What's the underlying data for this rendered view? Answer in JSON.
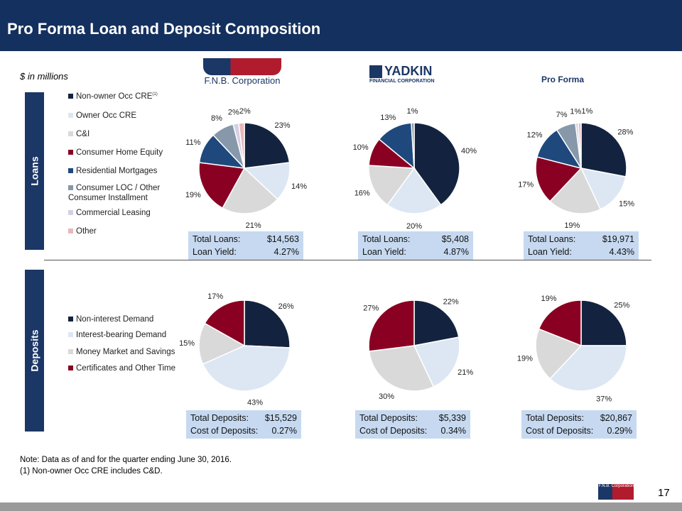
{
  "title": "Pro Forma Loan and Deposit Composition",
  "units": "$ in millions",
  "logos": {
    "fnb": "F.N.B. Corporation",
    "yadkin_main": "YADKIN",
    "yadkin_sub": "FINANCIAL CORPORATION",
    "pro_forma": "Pro Forma",
    "footer": "F.N.B. Corporation"
  },
  "sections": {
    "loans": "Loans",
    "deposits": "Deposits"
  },
  "colors": {
    "loans": [
      "#13233f",
      "#dde7f3",
      "#d9d9d9",
      "#8a0022",
      "#1f497d",
      "#8698a9",
      "#d6cfe4",
      "#e9b8bc"
    ],
    "deposits": [
      "#13233f",
      "#dde7f3",
      "#d9d9d9",
      "#8a0022"
    ]
  },
  "loan_legend": [
    "Non-owner Occ CRE",
    "Owner Occ CRE",
    "C&I",
    "Consumer Home Equity",
    "Residential Mortgages",
    "Consumer LOC / Other Consumer Installment",
    "Commercial Leasing",
    "Other"
  ],
  "loan_legend_footnote": "(1)",
  "deposit_legend": [
    "Non-interest Demand",
    "Interest-bearing Demand",
    "Money Market and Savings",
    "Certificates and Other Time"
  ],
  "chart_data": [
    {
      "type": "pie",
      "name": "F.N.B. Loans",
      "categories": "loan_legend",
      "values": [
        23,
        14,
        21,
        19,
        11,
        8,
        2,
        2
      ]
    },
    {
      "type": "pie",
      "name": "Yadkin Loans",
      "categories": "loan_legend",
      "values": [
        40,
        20,
        16,
        10,
        13,
        1,
        0,
        0
      ]
    },
    {
      "type": "pie",
      "name": "Pro Forma Loans",
      "categories": "loan_legend",
      "values": [
        28,
        15,
        19,
        17,
        12,
        7,
        1,
        1
      ]
    },
    {
      "type": "pie",
      "name": "F.N.B. Deposits",
      "categories": "deposit_legend",
      "values": [
        26,
        43,
        15,
        17
      ]
    },
    {
      "type": "pie",
      "name": "Yadkin Deposits",
      "categories": "deposit_legend",
      "values": [
        22,
        21,
        30,
        27
      ]
    },
    {
      "type": "pie",
      "name": "Pro Forma Deposits",
      "categories": "deposit_legend",
      "values": [
        25,
        37,
        19,
        19
      ]
    }
  ],
  "boxes": [
    {
      "l1": "Total Loans:",
      "v1": "$14,563",
      "l2": "Loan Yield:",
      "v2": "4.27%"
    },
    {
      "l1": "Total Loans:",
      "v1": "$5,408",
      "l2": "Loan Yield:",
      "v2": "4.87%"
    },
    {
      "l1": "Total Loans:",
      "v1": "$19,971",
      "l2": "Loan Yield:",
      "v2": "4.43%"
    },
    {
      "l1": "Total Deposits:",
      "v1": "$15,529",
      "l2": "Cost of Deposits:",
      "v2": "0.27%"
    },
    {
      "l1": "Total Deposits:",
      "v1": "$5,339",
      "l2": "Cost of Deposits:",
      "v2": "0.34%"
    },
    {
      "l1": "Total Deposits:",
      "v1": "$20,867",
      "l2": "Cost of Deposits:",
      "v2": "0.29%"
    }
  ],
  "note": "Note: Data as of and for the quarter ending June 30, 2016.",
  "footnote": "(1)    Non-owner Occ CRE includes C&D.",
  "page_number": "17"
}
